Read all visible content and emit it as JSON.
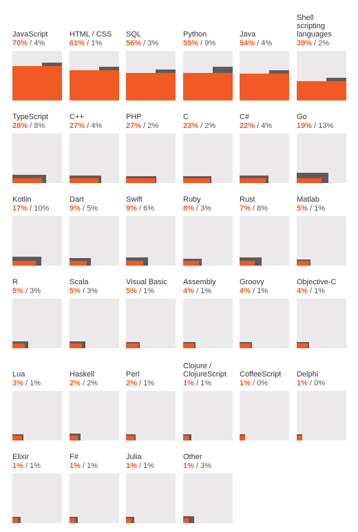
{
  "chart_data": {
    "type": "bar",
    "colors": {
      "primary": "#f15a24",
      "secondary": "#5f5b5b",
      "background": "#ebe9ea"
    },
    "panels": [
      {
        "name": "JavaScript",
        "primary": 70,
        "secondary": 4
      },
      {
        "name": "HTML / CSS",
        "primary": 61,
        "secondary": 1
      },
      {
        "name": "SQL",
        "primary": 56,
        "secondary": 3
      },
      {
        "name": "Python",
        "primary": 55,
        "secondary": 9
      },
      {
        "name": "Java",
        "primary": 54,
        "secondary": 4
      },
      {
        "name": "Shell scripting languages",
        "primary": 39,
        "secondary": 2
      },
      {
        "name": "TypeScript",
        "primary": 28,
        "secondary": 8
      },
      {
        "name": "C++",
        "primary": 27,
        "secondary": 4
      },
      {
        "name": "PHP",
        "primary": 27,
        "secondary": 2
      },
      {
        "name": "C",
        "primary": 23,
        "secondary": 2
      },
      {
        "name": "C#",
        "primary": 22,
        "secondary": 4
      },
      {
        "name": "Go",
        "primary": 19,
        "secondary": 13
      },
      {
        "name": "Kotlin",
        "primary": 17,
        "secondary": 10
      },
      {
        "name": "Dart",
        "primary": 9,
        "secondary": 5
      },
      {
        "name": "Swift",
        "primary": 9,
        "secondary": 6
      },
      {
        "name": "Ruby",
        "primary": 8,
        "secondary": 3
      },
      {
        "name": "Rust",
        "primary": 7,
        "secondary": 8
      },
      {
        "name": "Matlab",
        "primary": 5,
        "secondary": 1
      },
      {
        "name": "R",
        "primary": 5,
        "secondary": 3
      },
      {
        "name": "Scala",
        "primary": 5,
        "secondary": 3
      },
      {
        "name": "Visual Basic",
        "primary": 5,
        "secondary": 1
      },
      {
        "name": "Assembly",
        "primary": 4,
        "secondary": 1
      },
      {
        "name": "Groovy",
        "primary": 4,
        "secondary": 1
      },
      {
        "name": "Objective-C",
        "primary": 4,
        "secondary": 1
      },
      {
        "name": "Lua",
        "primary": 3,
        "secondary": 1
      },
      {
        "name": "Haskell",
        "primary": 2,
        "secondary": 2
      },
      {
        "name": "Perl",
        "primary": 2,
        "secondary": 1
      },
      {
        "name": "Clojure / ClojureScript",
        "primary": 1,
        "secondary": 1
      },
      {
        "name": "CoffeeScript",
        "primary": 1,
        "secondary": 0
      },
      {
        "name": "Delphi",
        "primary": 1,
        "secondary": 0
      },
      {
        "name": "Elixir",
        "primary": 1,
        "secondary": 1
      },
      {
        "name": "F#",
        "primary": 1,
        "secondary": 1
      },
      {
        "name": "Julia",
        "primary": 1,
        "secondary": 1
      },
      {
        "name": "Other",
        "primary": 1,
        "secondary": 3
      }
    ]
  }
}
